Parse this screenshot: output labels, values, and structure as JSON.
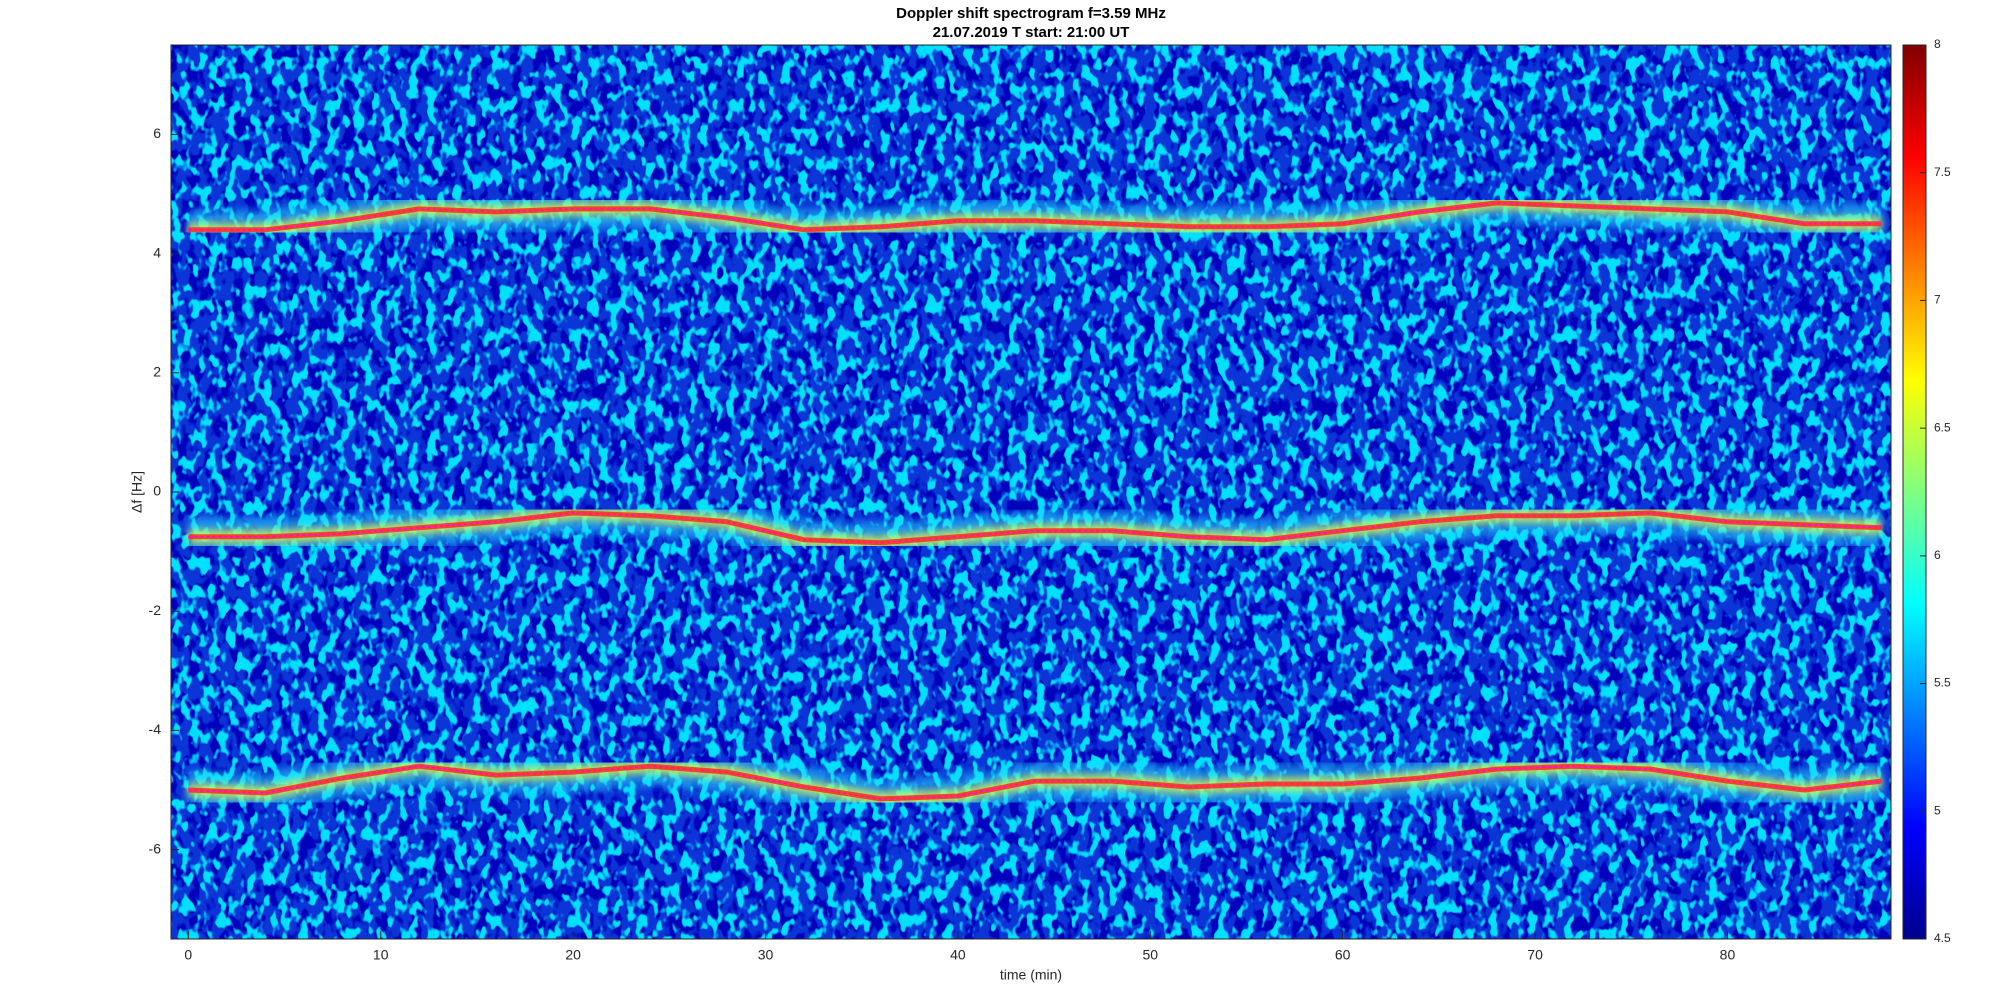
{
  "chart_data": {
    "type": "spectrogram",
    "title": "Doppler shift spectrogram f=3.59 MHz",
    "subtitle": "21.07.2019   T start: 21:00 UT",
    "x_label": "time (min)",
    "y_label": "Δf [Hz]",
    "xlim": [
      -0.9,
      88.5
    ],
    "xticks": [
      0,
      10,
      20,
      30,
      40,
      50,
      60,
      70,
      80
    ],
    "ylim": [
      -7.5,
      7.5
    ],
    "yticks": [
      -6,
      -4,
      -2,
      0,
      2,
      4,
      6
    ],
    "colorbar": {
      "colormap": "jet",
      "lim": [
        4.5,
        8
      ],
      "ticks": [
        4.5,
        5,
        5.5,
        6,
        6.5,
        7,
        7.5,
        8
      ]
    },
    "x": [
      0,
      4,
      8,
      12,
      16,
      20,
      24,
      28,
      32,
      36,
      40,
      44,
      48,
      52,
      56,
      60,
      64,
      68,
      72,
      76,
      80,
      84,
      88
    ],
    "series": [
      {
        "color": "#ff00ff",
        "values": [
          4.4,
          4.4,
          4.55,
          4.75,
          4.7,
          4.75,
          4.75,
          4.6,
          4.4,
          4.45,
          4.55,
          4.55,
          4.5,
          4.45,
          4.45,
          4.5,
          4.7,
          4.85,
          4.8,
          4.75,
          4.7,
          4.5,
          4.5
        ]
      },
      {
        "color": "#ff00ff",
        "values": [
          -0.75,
          -0.75,
          -0.7,
          -0.6,
          -0.5,
          -0.35,
          -0.4,
          -0.5,
          -0.8,
          -0.85,
          -0.75,
          -0.65,
          -0.65,
          -0.75,
          -0.8,
          -0.65,
          -0.5,
          -0.4,
          -0.4,
          -0.35,
          -0.5,
          -0.55,
          -0.6
        ]
      },
      {
        "color": "#ff00ff",
        "values": [
          -5.0,
          -5.05,
          -4.8,
          -4.6,
          -4.75,
          -4.7,
          -4.6,
          -4.7,
          -4.95,
          -5.15,
          -5.1,
          -4.85,
          -4.85,
          -4.95,
          -4.9,
          -4.9,
          -4.8,
          -4.65,
          -4.6,
          -4.65,
          -4.85,
          -5.0,
          -4.85
        ]
      }
    ]
  }
}
